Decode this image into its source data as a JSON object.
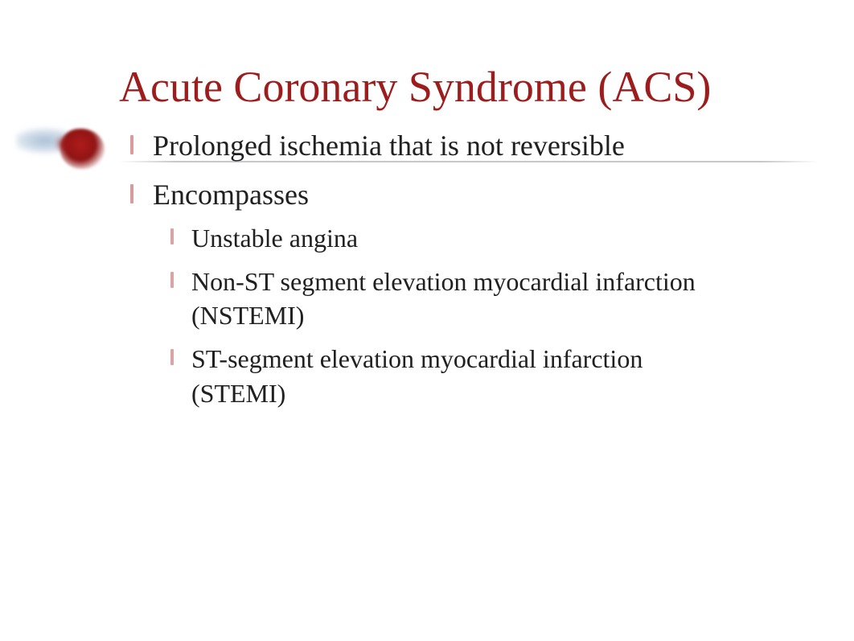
{
  "slide": {
    "title": "Acute Coronary Syndrome (ACS)",
    "title_color": "#9d1c1c",
    "title_fontsize": 54,
    "body_color": "#202020",
    "bullet_accent_color": "#b84a4a",
    "background_color": "#ffffff",
    "divider_color": "#bec0c3",
    "bullets": [
      {
        "text": "Prolonged ischemia that is not reversible",
        "children": []
      },
      {
        "text": "Encompasses",
        "children": [
          {
            "text": "Unstable angina"
          },
          {
            "text": "Non-ST segment elevation myocardial infarction (NSTEMI)"
          },
          {
            "text": "ST-segment elevation myocardial infarction (STEMI)"
          }
        ]
      }
    ],
    "font_family": "Times New Roman",
    "level1_fontsize": 36,
    "level2_fontsize": 32
  }
}
